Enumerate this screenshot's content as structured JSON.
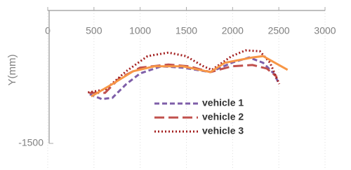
{
  "chart_data": {
    "type": "line",
    "y_label": "Y(mm)",
    "xlim": [
      0,
      3000
    ],
    "xticks": [
      0,
      500,
      1000,
      1500,
      2000,
      2500,
      3000
    ],
    "ylim": [
      -1500,
      0
    ],
    "yticks": [
      -1500
    ],
    "grid": true,
    "series": [
      {
        "name": "vehicle 1",
        "color": "#7e5ea8",
        "dash": "dashed",
        "x": [
          455,
          585,
          700,
          850,
          1000,
          1230,
          1460,
          1760,
          1990,
          2180,
          2330,
          2445,
          2505
        ],
        "values": [
          -945,
          -1000,
          -985,
          -830,
          -710,
          -630,
          -645,
          -695,
          -590,
          -530,
          -590,
          -710,
          -830
        ]
      },
      {
        "name": "vehicle 2",
        "color": "#c0504d",
        "dash": "longdash",
        "x": [
          450,
          620,
          775,
          1000,
          1305,
          1530,
          1760,
          1990,
          2215,
          2370,
          2480
        ],
        "values": [
          -930,
          -930,
          -765,
          -645,
          -610,
          -630,
          -695,
          -630,
          -615,
          -655,
          -750
        ]
      },
      {
        "name": "vehicle 3",
        "color": "#a31f1f",
        "dash": "dotted",
        "x": [
          435,
          625,
          850,
          1080,
          1305,
          1495,
          1685,
          1775,
          1990,
          2140,
          2295,
          2405,
          2505
        ],
        "values": [
          -925,
          -890,
          -685,
          -515,
          -475,
          -515,
          -630,
          -670,
          -515,
          -450,
          -460,
          -590,
          -830
        ]
      },
      {
        "color": "#f79646",
        "dash": "solid",
        "x": [
          470,
          700,
          925,
          1155,
          1460,
          1760,
          1915,
          2215,
          2330,
          2595
        ],
        "values": [
          -970,
          -830,
          -685,
          -630,
          -630,
          -695,
          -590,
          -530,
          -515,
          -670
        ]
      }
    ]
  }
}
